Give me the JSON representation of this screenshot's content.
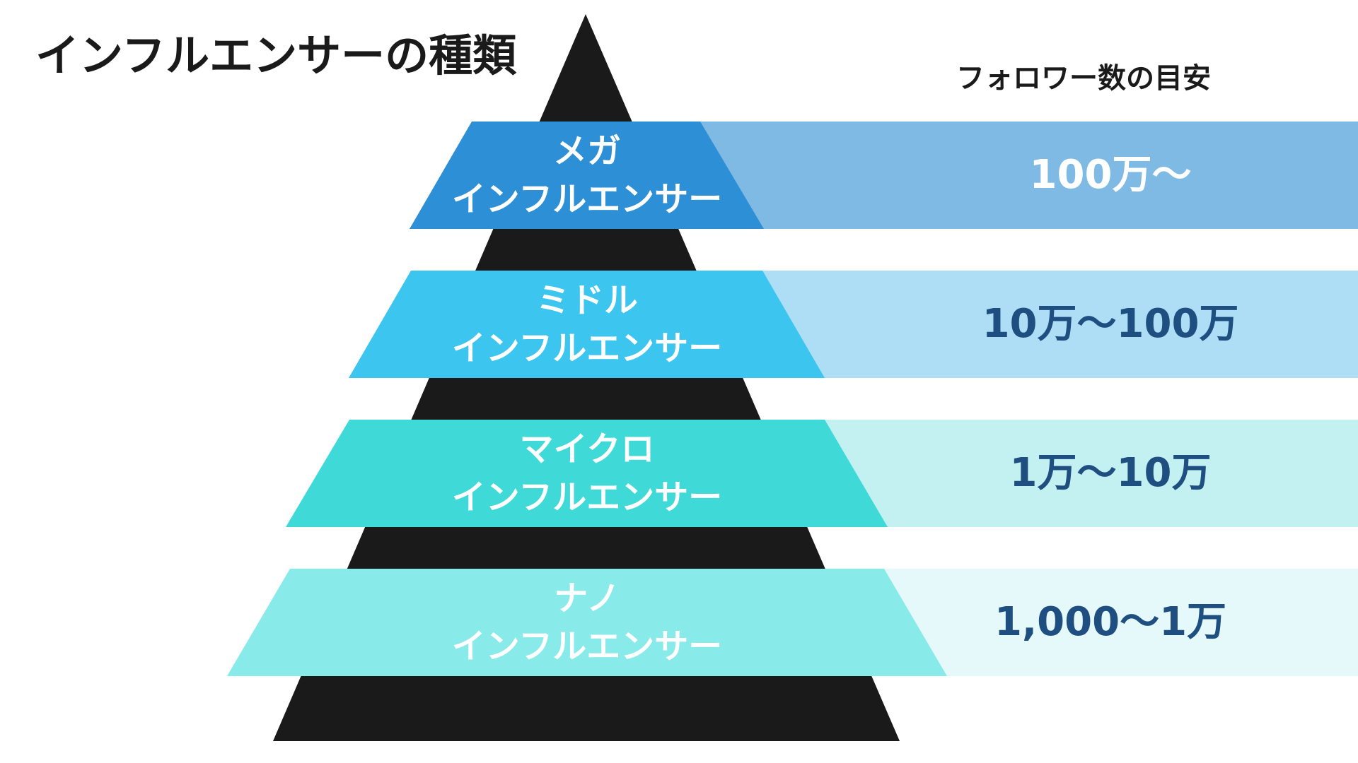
{
  "title": "インフルエンサーの種類",
  "header": "フォロワー数の目安",
  "tiers": [
    {
      "name": "メガ",
      "subtitle": "インフルエンサー",
      "range": "100万〜",
      "color": "#2d8fd6",
      "band_color": "#7ebae3",
      "range_color": "#ffffff"
    },
    {
      "name": "ミドル",
      "subtitle": "インフルエンサー",
      "range": "10万〜100万",
      "color": "#3cc5ef",
      "band_color": "#addef5",
      "range_color": "#1e4f80"
    },
    {
      "name": "マイクロ",
      "subtitle": "インフルエンサー",
      "range": "1万〜10万",
      "color": "#3fdad8",
      "band_color": "#c3f0f1",
      "range_color": "#1e4f80"
    },
    {
      "name": "ナノ",
      "subtitle": "インフルエンサー",
      "range": "1,000〜1万",
      "color": "#89eaea",
      "band_color": "#e6f9fa",
      "range_color": "#1e4f80"
    }
  ],
  "pyramid_color": "#1a1a1a"
}
